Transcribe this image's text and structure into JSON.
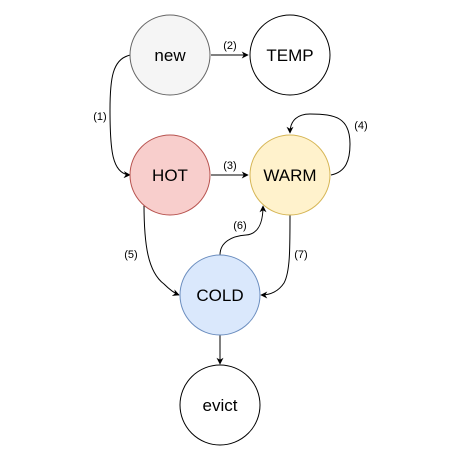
{
  "nodes": {
    "new": {
      "label": "new",
      "fill": "#f5f5f5",
      "stroke": "#666666"
    },
    "temp": {
      "label": "TEMP",
      "fill": "#ffffff",
      "stroke": "#000000"
    },
    "hot": {
      "label": "HOT",
      "fill": "#f8cecc",
      "stroke": "#b85450"
    },
    "warm": {
      "label": "WARM",
      "fill": "#fff2cc",
      "stroke": "#d6b656"
    },
    "cold": {
      "label": "COLD",
      "fill": "#dae8fc",
      "stroke": "#6c8ebf"
    },
    "evict": {
      "label": "evict",
      "fill": "#ffffff",
      "stroke": "#000000"
    }
  },
  "edges": {
    "new_to_temp": {
      "label": "(2)"
    },
    "new_to_hot": {
      "label": "(1)"
    },
    "hot_to_warm": {
      "label": "(3)"
    },
    "warm_self": {
      "label": "(4)"
    },
    "hot_to_cold": {
      "label": "(5)"
    },
    "cold_to_warm": {
      "label": "(6)"
    },
    "warm_to_cold": {
      "label": "(7)"
    },
    "cold_to_evict": {
      "label": ""
    }
  }
}
